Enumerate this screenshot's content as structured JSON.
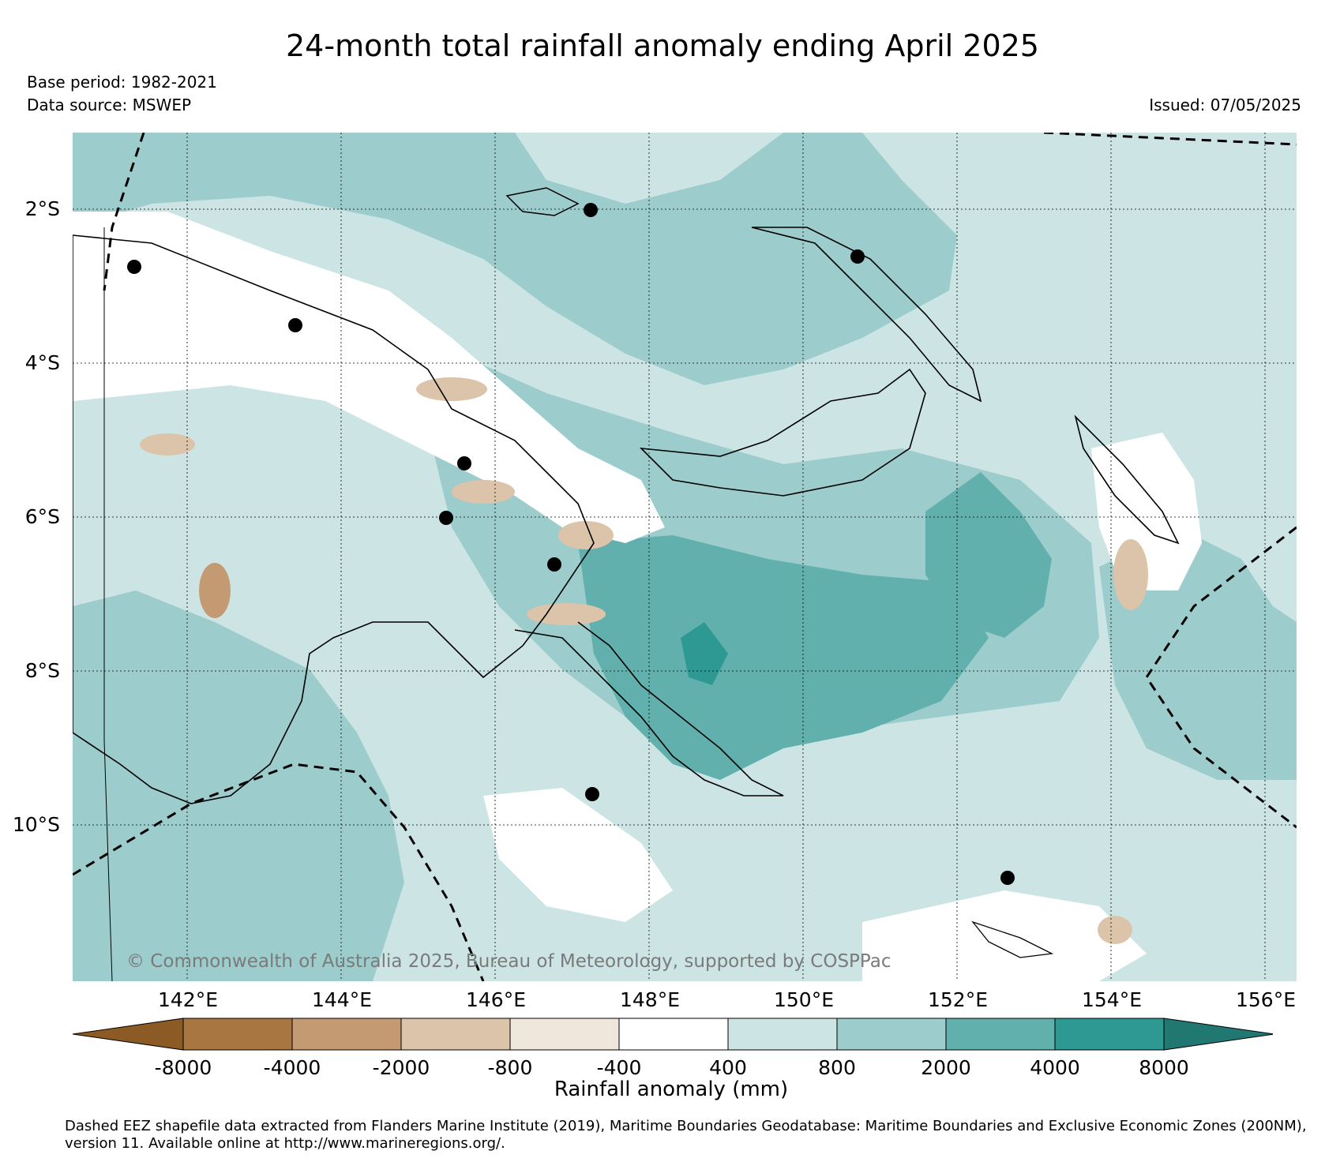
{
  "title": "24-month total rainfall anomaly ending April 2025",
  "base_period": "Base period: 1982-2021",
  "data_source": "Data source: MSWEP",
  "issued": "Issued: 07/05/2025",
  "copyright": "© Commonwealth of Australia 2025, Bureau of Meteorology, supported by COSPPac",
  "lat_labels": [
    "2°S",
    "4°S",
    "6°S",
    "8°S",
    "10°S"
  ],
  "lon_labels": [
    "142°E",
    "144°E",
    "146°E",
    "148°E",
    "150°E",
    "152°E",
    "154°E",
    "156°E"
  ],
  "colorbar": {
    "ticks": [
      "-8000",
      "-4000",
      "-2000",
      "-800",
      "-400",
      "400",
      "800",
      "2000",
      "4000",
      "8000"
    ],
    "colors": [
      "#8c5a24",
      "#a87640",
      "#c49a72",
      "#dcc4ab",
      "#efe6dc",
      "#ffffff",
      "#cce5e4",
      "#9ccccb",
      "#62b0ad",
      "#2e9892",
      "#217772"
    ],
    "label": "Rainfall anomaly (mm)"
  },
  "footnote": "Dashed EEZ shapefile data extracted from Flanders Marine Institute (2019), Maritime Boundaries Geodatabase: Maritime Boundaries and Exclusive Economic Zones (200NM), version 11. Available online at http://www.marineregions.org/.",
  "colors": {
    "ocean_base": "#cce5e4",
    "mid": "#9ccccb",
    "high": "#62b0ad",
    "very_high": "#2e9892",
    "dry": "#dcc4ab",
    "very_dry": "#c49a72"
  }
}
